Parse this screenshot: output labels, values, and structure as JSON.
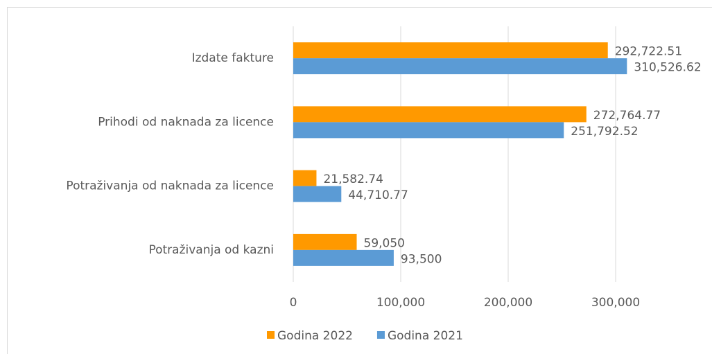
{
  "chart_data": {
    "type": "hbar",
    "categories": [
      "Izdate fakture",
      "Prihodi od naknada za licence",
      "Potraživanja od naknada za licence",
      "Potraživanja od kazni"
    ],
    "series": [
      {
        "name": "Godina 2022",
        "color": "#ff9900",
        "values": [
          292722.51,
          272764.77,
          21582.74,
          59050
        ],
        "value_labels": [
          "292,722.51",
          "272,764.77",
          "21,582.74",
          "59,050"
        ]
      },
      {
        "name": "Godina 2021",
        "color": "#5b9bd5",
        "values": [
          310526.62,
          251792.52,
          44710.77,
          93500
        ],
        "value_labels": [
          "310,526.62",
          "251,792.52",
          "44,710.77",
          "93,500"
        ]
      }
    ],
    "xlim": [
      0,
      350000
    ],
    "xticks": [
      0,
      {
        "value": 100000,
        "label": "100,000"
      },
      {
        "value": 200000,
        "label": "200,000"
      },
      {
        "value": 300000,
        "label": "300,000"
      }
    ],
    "grid": true,
    "legend": "bottom"
  }
}
